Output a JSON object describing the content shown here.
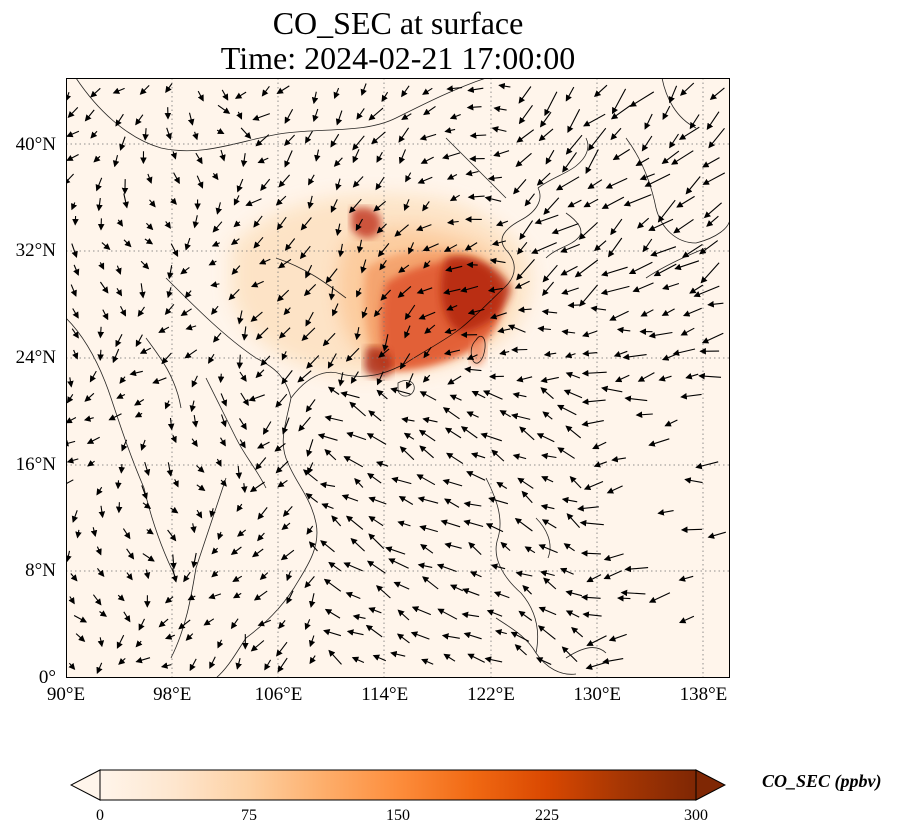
{
  "title": {
    "line1": "CO_SEC at surface",
    "line2": "Time: 2024-02-21 17:00:00"
  },
  "map": {
    "lon_range": [
      90,
      140
    ],
    "lat_range": [
      0,
      45
    ],
    "lat_ticks": [
      {
        "value": 0,
        "label": "0°"
      },
      {
        "value": 8,
        "label": "8°N"
      },
      {
        "value": 16,
        "label": "16°N"
      },
      {
        "value": 24,
        "label": "24°N"
      },
      {
        "value": 32,
        "label": "32°N"
      },
      {
        "value": 40,
        "label": "40°N"
      }
    ],
    "lon_ticks": [
      {
        "value": 90,
        "label": "90°E"
      },
      {
        "value": 98,
        "label": "98°E"
      },
      {
        "value": 106,
        "label": "106°E"
      },
      {
        "value": 114,
        "label": "114°E"
      },
      {
        "value": 122,
        "label": "122°E"
      },
      {
        "value": 130,
        "label": "130°E"
      },
      {
        "value": 138,
        "label": "138°E"
      }
    ],
    "gridlines": true,
    "background_color": "#fff5eb",
    "coastline_color": "#000000",
    "vector_color": "#000000"
  },
  "colorbar": {
    "label": "CO_SEC (ppbv)",
    "min": 0,
    "max": 300,
    "extend": "both",
    "colormap": "OrRd",
    "ticks": [
      {
        "value": 0,
        "label": "0"
      },
      {
        "value": 75,
        "label": "75"
      },
      {
        "value": 150,
        "label": "150"
      },
      {
        "value": 225,
        "label": "225"
      },
      {
        "value": 300,
        "label": "300"
      }
    ],
    "stops": [
      "#fff5eb",
      "#fee6ce",
      "#fdd0a2",
      "#fdae6b",
      "#fd8d3c",
      "#f16913",
      "#d94801",
      "#a63603",
      "#7f2704"
    ]
  }
}
